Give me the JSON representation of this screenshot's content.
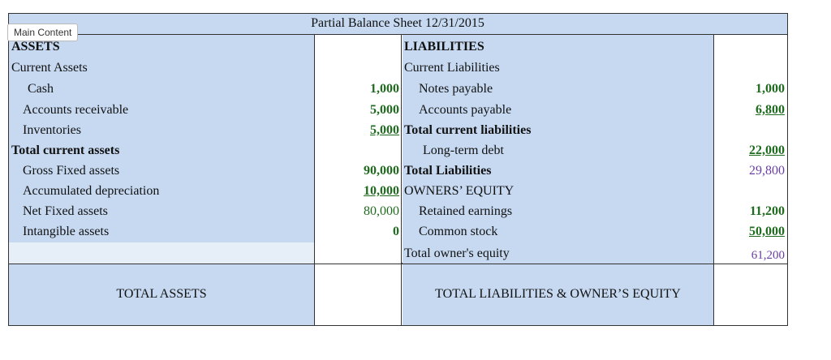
{
  "header": {
    "title": "Partial Balance Sheet 12/31/2015"
  },
  "overlay": {
    "label": "Main Content"
  },
  "assets": {
    "heading": "ASSETS",
    "current_assets": "Current Assets",
    "cash": {
      "label": "Cash",
      "value": "1,000"
    },
    "receivable": {
      "label": "Accounts receivable",
      "value": "5,000"
    },
    "inventories": {
      "label": "Inventories",
      "value": "5,000"
    },
    "total_current": {
      "label": "Total current assets"
    },
    "gross_fixed": {
      "label": "Gross Fixed assets",
      "value": "90,000"
    },
    "accum_dep": {
      "label": "Accumulated depreciation",
      "value": "10,000"
    },
    "net_fixed": {
      "label": "Net Fixed assets",
      "value": "80,000"
    },
    "intangible": {
      "label": "Intangible assets",
      "value": "0"
    },
    "total": {
      "label": "TOTAL ASSETS"
    }
  },
  "liabilities": {
    "heading": "LIABILITIES",
    "current": "Current Liabilities",
    "notes": {
      "label": "Notes payable",
      "value": "1,000"
    },
    "payable": {
      "label": "Accounts payable",
      "value": "6,800"
    },
    "total_current": {
      "label": "Total current liabilities"
    },
    "long_term": {
      "label": "Long-term debt",
      "value": "22,000"
    },
    "total": {
      "label": "Total Liabilities",
      "value": "29,800"
    },
    "equity_heading": "OWNERS’ EQUITY",
    "retained": {
      "label": "Retained earnings",
      "value": "11,200"
    },
    "common": {
      "label": "Common stock",
      "value": "50,000"
    },
    "total_equity": {
      "label": "Total owner's equity",
      "value": "61,200"
    },
    "grand_total": {
      "label": "TOTAL LIABILITIES & OWNER’S EQUITY"
    }
  },
  "colors": {
    "panel": "#c6d9f1",
    "green": "#1e6b1e",
    "purple": "#6a3ea3"
  }
}
